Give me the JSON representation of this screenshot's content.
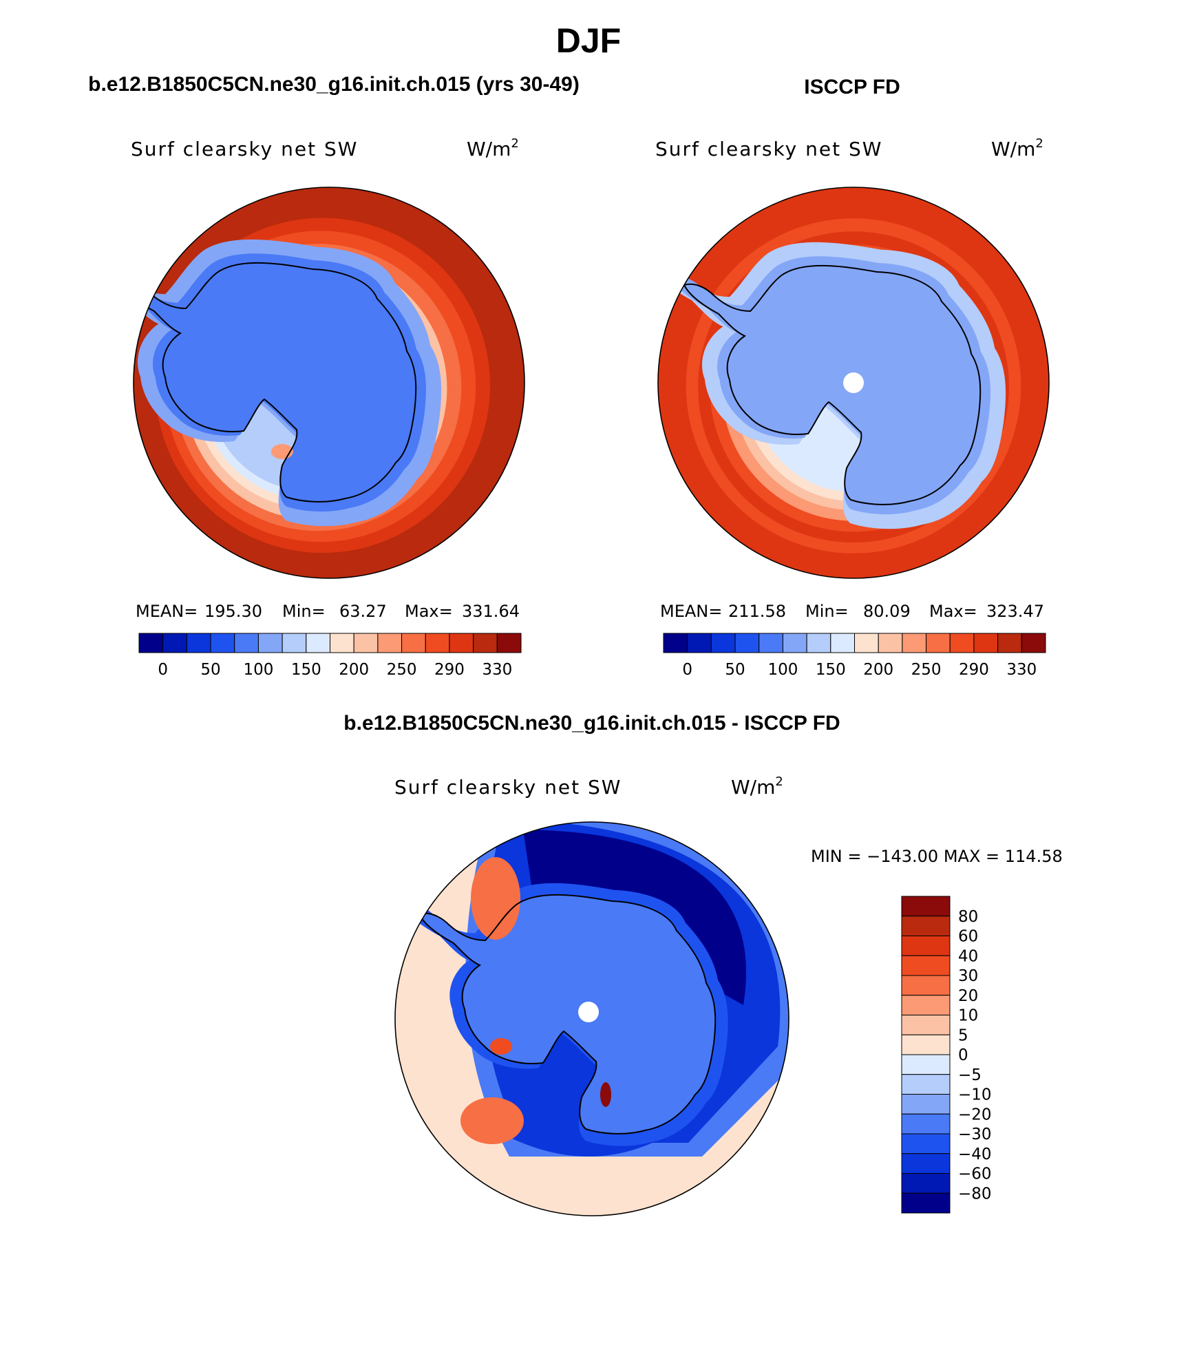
{
  "page": {
    "title": "DJF",
    "colors": {
      "background": "#ffffff",
      "text": "#000000"
    }
  },
  "chart_data": [
    {
      "type": "heatmap",
      "projection": "south-polar-stereographic",
      "title": "b.e12.B1850C5CN.ne30_g16.init.ch.015 (yrs 30-49)",
      "subtitle": "Surf clearsky net SW",
      "units": "W/m",
      "units_sup": "2",
      "stats": {
        "mean_label": "MEAN=",
        "mean": "195.30",
        "min_label": "Min=",
        "min": "63.27",
        "max_label": "Max=",
        "max": "331.64"
      },
      "colorbar": {
        "orientation": "horizontal",
        "ticks": [
          "0",
          "50",
          "100",
          "150",
          "200",
          "250",
          "290",
          "330"
        ],
        "colors": [
          "#00008b",
          "#0019b4",
          "#0a36dc",
          "#1f53f0",
          "#4a7af5",
          "#84a6f7",
          "#b4cdfa",
          "#dceaff",
          "#fde2cf",
          "#fcc2a6",
          "#fb9a74",
          "#f76f44",
          "#ef4c21",
          "#de3612",
          "#b92a0e",
          "#8b0a0a"
        ]
      },
      "field": {
        "ocean_far": 310,
        "ocean_mid": 250,
        "ocean_near": 180,
        "sea_ice_edge": 130,
        "continent": 85,
        "interior_min": 63.27,
        "hot_spot": 230,
        "hot_spot_location": "Ross Sea ice shelf edge"
      }
    },
    {
      "type": "heatmap",
      "projection": "south-polar-stereographic",
      "title": "ISCCP FD",
      "subtitle": "Surf clearsky net SW",
      "units": "W/m",
      "units_sup": "2",
      "stats": {
        "mean_label": "MEAN=",
        "mean": "211.58",
        "min_label": "Min=",
        "min": "80.09",
        "max_label": "Max=",
        "max": "323.47"
      },
      "colorbar": {
        "orientation": "horizontal",
        "ticks": [
          "0",
          "50",
          "100",
          "150",
          "200",
          "250",
          "290",
          "330"
        ],
        "colors": [
          "#00008b",
          "#0019b4",
          "#0a36dc",
          "#1f53f0",
          "#4a7af5",
          "#84a6f7",
          "#b4cdfa",
          "#dceaff",
          "#fde2cf",
          "#fcc2a6",
          "#fb9a74",
          "#f76f44",
          "#ef4c21",
          "#de3612",
          "#b92a0e",
          "#8b0a0a"
        ]
      },
      "field": {
        "ocean_far": 300,
        "ocean_mid": 270,
        "ocean_near": 220,
        "sea_ice_edge": 150,
        "continent": 110,
        "interior_min": 80.09,
        "pole_missing": true
      }
    },
    {
      "type": "heatmap",
      "projection": "south-polar-stereographic",
      "title": "b.e12.B1850C5CN.ne30_g16.init.ch.015 - ISCCP FD",
      "subtitle": "Surf clearsky net SW",
      "units": "W/m",
      "units_sup": "2",
      "stats": {
        "text": "MIN = −143.00 MAX = 114.58",
        "min": -143.0,
        "max": 114.58
      },
      "colorbar": {
        "orientation": "vertical",
        "ticks": [
          "80",
          "60",
          "40",
          "30",
          "20",
          "10",
          "5",
          "0",
          "−5",
          "−10",
          "−20",
          "−30",
          "−40",
          "−60",
          "−80"
        ],
        "colors": [
          "#8b0a0a",
          "#b92a0e",
          "#de3612",
          "#ef4c21",
          "#f76f44",
          "#fb9a74",
          "#fcc2a6",
          "#fde2cf",
          "#dceaff",
          "#b4cdfa",
          "#84a6f7",
          "#4a7af5",
          "#1f53f0",
          "#0a36dc",
          "#0019b4",
          "#00008b"
        ]
      },
      "field": {
        "ocean_far": 0,
        "pacific_sector": -85,
        "continent": -25,
        "coastal_ring": -40,
        "positive_patch": 20,
        "pole_missing": true
      }
    }
  ]
}
